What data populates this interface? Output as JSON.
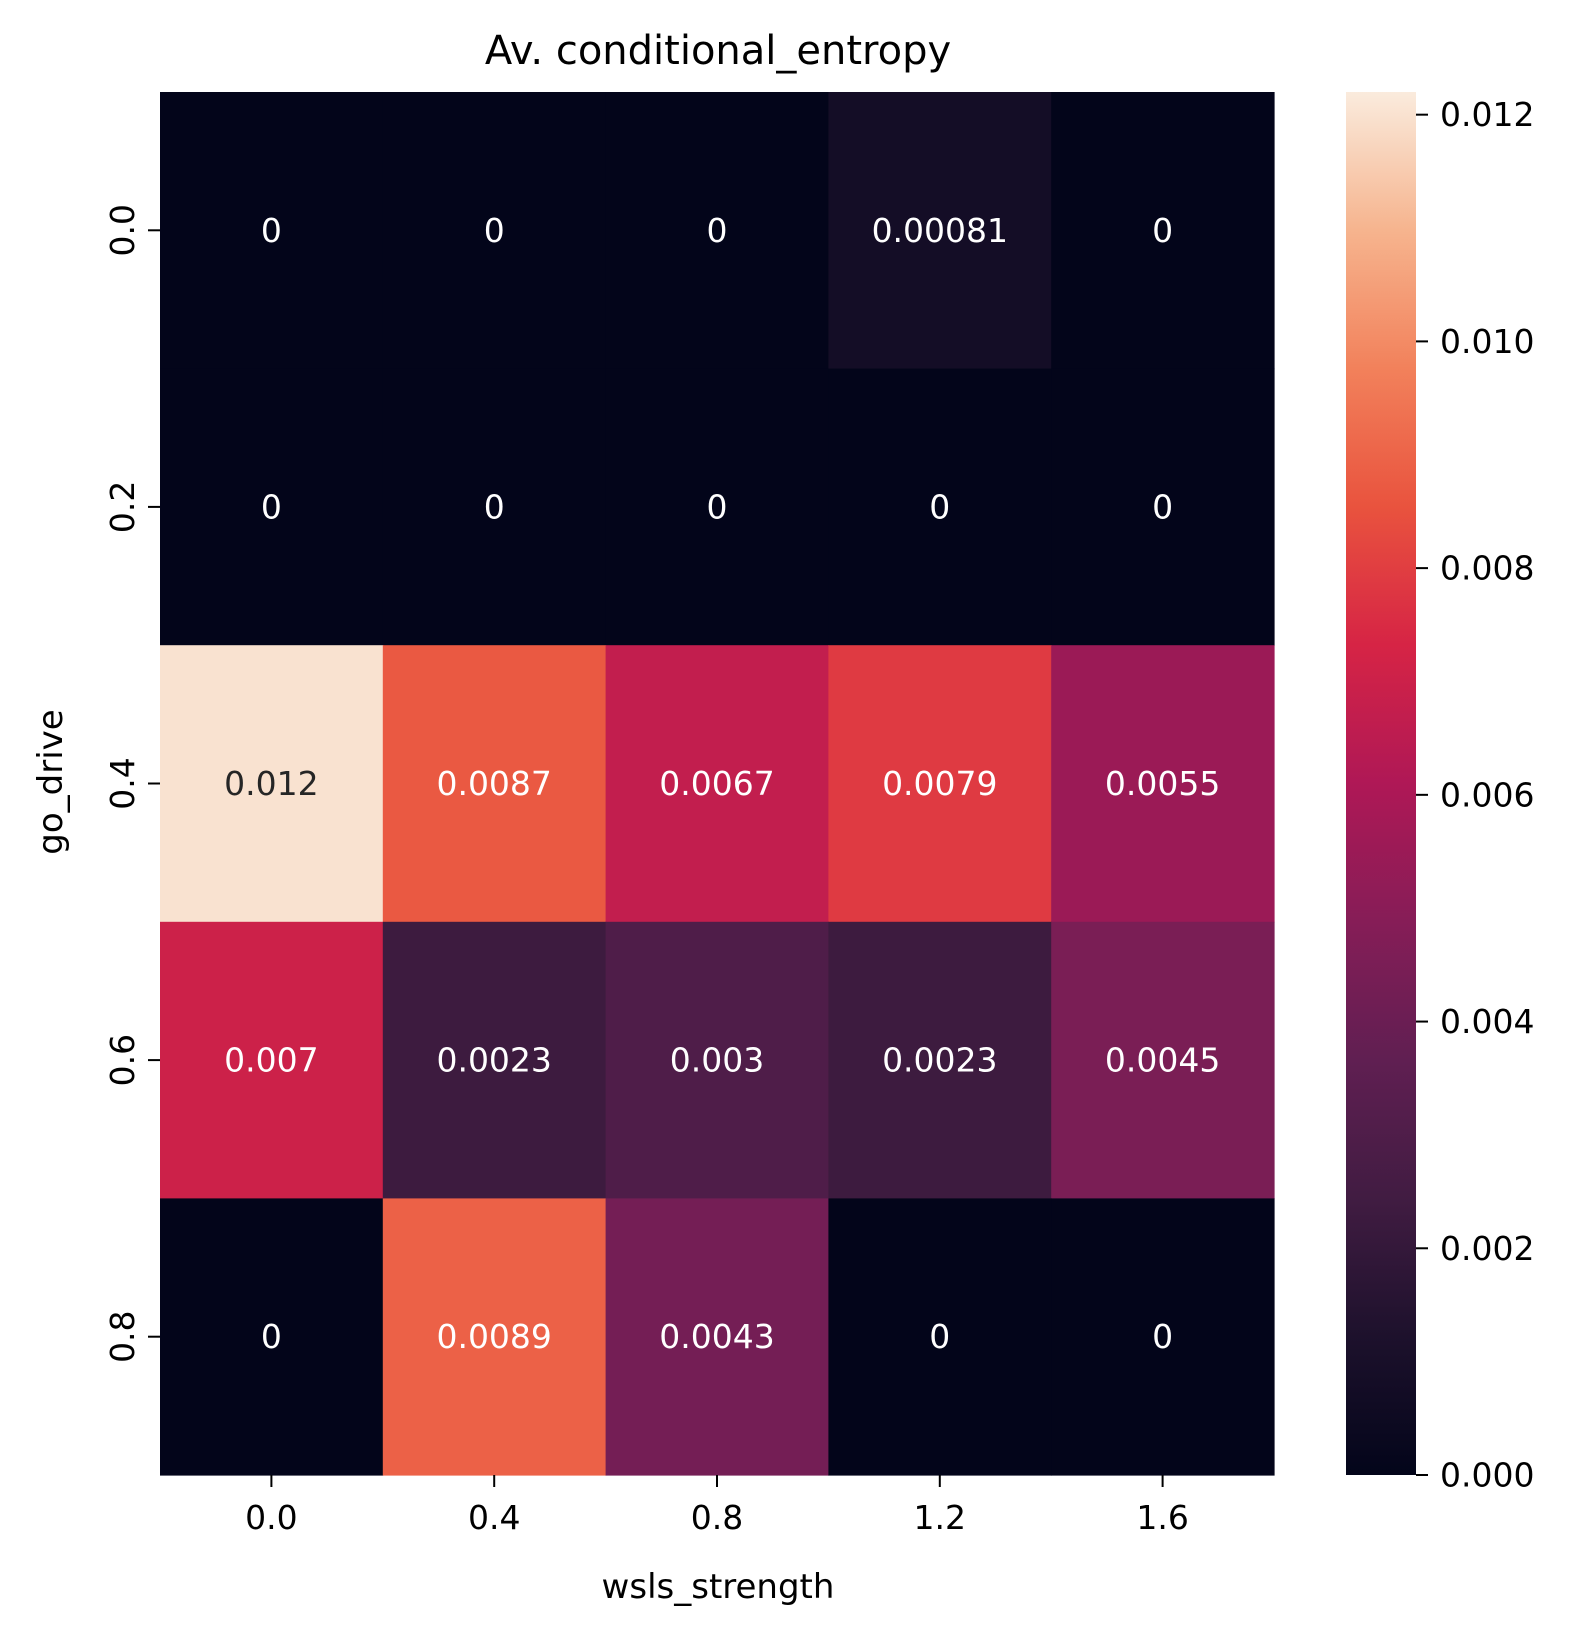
{
  "chart_data": {
    "type": "heatmap",
    "title": "Av. conditional_entropy",
    "xlabel": "wsls_strength",
    "ylabel": "go_drive",
    "x_categories": [
      "0.0",
      "0.4",
      "0.8",
      "1.2",
      "1.6"
    ],
    "y_categories": [
      "0.0",
      "0.2",
      "0.4",
      "0.6",
      "0.8"
    ],
    "values": [
      [
        0,
        0,
        0,
        0.00081,
        0
      ],
      [
        0,
        0,
        0,
        0,
        0
      ],
      [
        0.012,
        0.0087,
        0.0067,
        0.0079,
        0.0055
      ],
      [
        0.007,
        0.0023,
        0.003,
        0.0023,
        0.0045
      ],
      [
        0,
        0.0089,
        0.0043,
        0,
        0
      ]
    ],
    "cell_labels": [
      [
        "0",
        "0",
        "0",
        "0.00081",
        "0"
      ],
      [
        "0",
        "0",
        "0",
        "0",
        "0"
      ],
      [
        "0.012",
        "0.0087",
        "0.0067",
        "0.0079",
        "0.0055"
      ],
      [
        "0.007",
        "0.0023",
        "0.003",
        "0.0023",
        "0.0045"
      ],
      [
        "0",
        "0.0089",
        "0.0043",
        "0",
        "0"
      ]
    ],
    "colorbar": {
      "min": 0,
      "max": 0.0122,
      "ticks": [
        0,
        0.002,
        0.004,
        0.006,
        0.008,
        0.01,
        0.012
      ],
      "tick_labels": [
        "0.000",
        "0.002",
        "0.004",
        "0.006",
        "0.008",
        "0.010",
        "0.012"
      ],
      "colormap": "rocket"
    }
  }
}
